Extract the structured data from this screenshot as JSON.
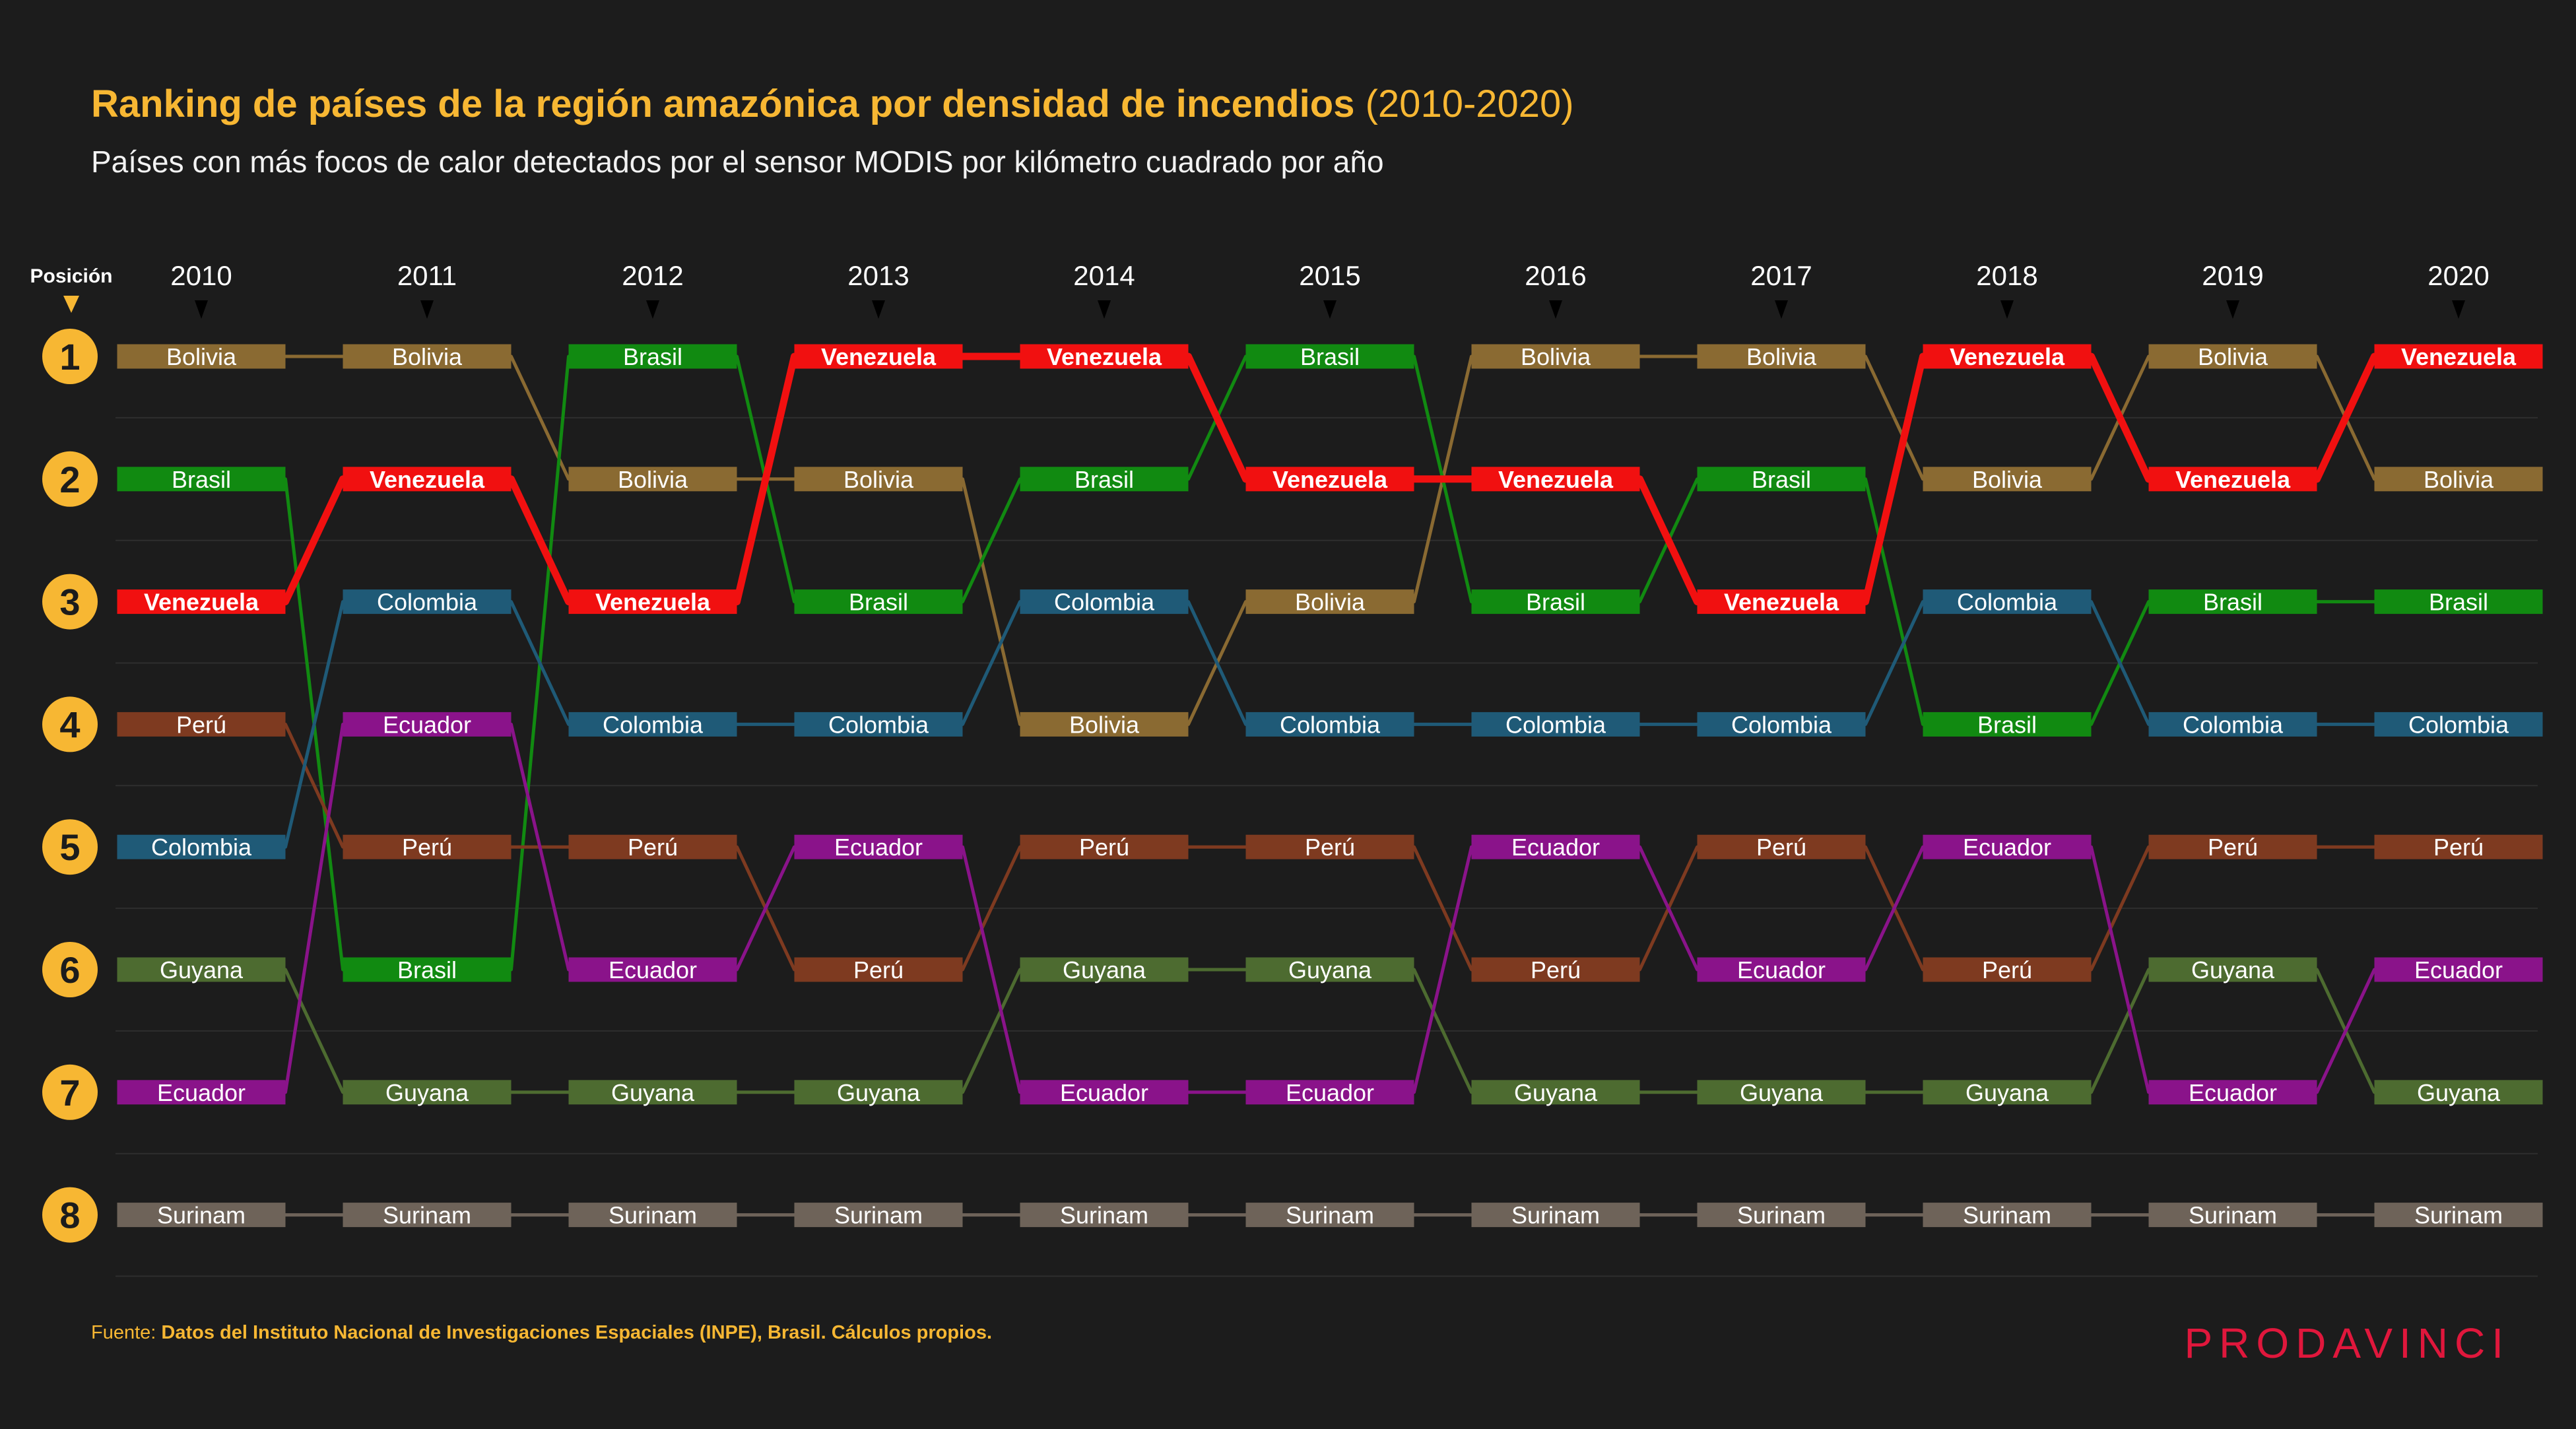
{
  "title": "Ranking de países de la región amazónica por densidad de incendios",
  "title_years": "(2010-2020)",
  "subtitle": "Países con más focos de calor detectados por el sensor MODIS por kilómetro cuadrado por año",
  "position_label": "Posición",
  "source_prefix": "Fuente:",
  "source_text": "Datos del Instituto Nacional de Investigaciones Espaciales (INPE), Brasil. Cálculos propios.",
  "brand": "PRODAVINCI",
  "colors": {
    "background": "#1c1c1c",
    "accent": "#f7b733",
    "brand": "#e0173c",
    "grid": "#2e2e2e",
    "arrow": "#000000"
  },
  "chart_data": {
    "type": "bump",
    "years": [
      "2010",
      "2011",
      "2012",
      "2013",
      "2014",
      "2015",
      "2016",
      "2017",
      "2018",
      "2019",
      "2020"
    ],
    "positions": [
      1,
      2,
      3,
      4,
      5,
      6,
      7,
      8
    ],
    "series": [
      {
        "name": "Bolivia",
        "color": "#8a6a32",
        "ranks": [
          1,
          1,
          2,
          2,
          4,
          3,
          1,
          1,
          2,
          1,
          2
        ]
      },
      {
        "name": "Brasil",
        "color": "#118a11",
        "ranks": [
          2,
          6,
          1,
          3,
          2,
          1,
          3,
          2,
          4,
          3,
          3
        ]
      },
      {
        "name": "Venezuela",
        "color": "#f11010",
        "ranks": [
          3,
          2,
          3,
          1,
          1,
          2,
          2,
          3,
          1,
          2,
          1
        ],
        "bold": true
      },
      {
        "name": "Perú",
        "color": "#7e3a20",
        "ranks": [
          4,
          5,
          5,
          6,
          5,
          5,
          6,
          5,
          6,
          5,
          5
        ]
      },
      {
        "name": "Colombia",
        "color": "#1f5a77",
        "ranks": [
          5,
          3,
          4,
          4,
          3,
          4,
          4,
          4,
          3,
          4,
          4
        ]
      },
      {
        "name": "Guyana",
        "color": "#4d6b30",
        "ranks": [
          6,
          7,
          7,
          7,
          6,
          6,
          7,
          7,
          7,
          6,
          7
        ]
      },
      {
        "name": "Ecuador",
        "color": "#8a138a",
        "ranks": [
          7,
          4,
          6,
          5,
          7,
          7,
          5,
          6,
          5,
          7,
          6
        ]
      },
      {
        "name": "Surinam",
        "color": "#6e6359",
        "ranks": [
          8,
          8,
          8,
          8,
          8,
          8,
          8,
          8,
          8,
          8,
          8
        ]
      }
    ]
  }
}
